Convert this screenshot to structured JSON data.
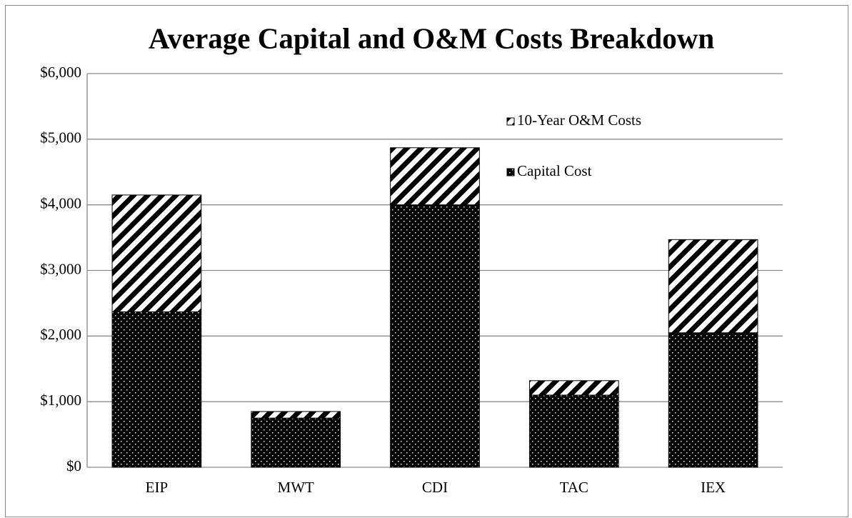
{
  "chart_data": {
    "type": "stacked_bar",
    "title": "Average Capital and O&M Costs Breakdown",
    "categories": [
      "EIP",
      "MWT",
      "CDI",
      "TAC",
      "IEX"
    ],
    "series": [
      {
        "name": "Capital Cost",
        "color": "#000000",
        "pattern": "dots",
        "values": [
          2370,
          750,
          4000,
          1100,
          2050
        ]
      },
      {
        "name": "10-Year O&M Costs",
        "color": "#000000",
        "pattern": "stripes",
        "values": [
          1780,
          100,
          870,
          220,
          1420
        ]
      }
    ],
    "ylim": [
      0,
      6000
    ],
    "yticks": [
      {
        "value": 0,
        "label": "$0"
      },
      {
        "value": 1000,
        "label": "$1,000"
      },
      {
        "value": 2000,
        "label": "$2,000"
      },
      {
        "value": 3000,
        "label": "$3,000"
      },
      {
        "value": 4000,
        "label": "$4,000"
      },
      {
        "value": 5000,
        "label": "$5,000"
      },
      {
        "value": 6000,
        "label": "$6,000"
      }
    ],
    "grid": true,
    "legend": "upper-right"
  }
}
